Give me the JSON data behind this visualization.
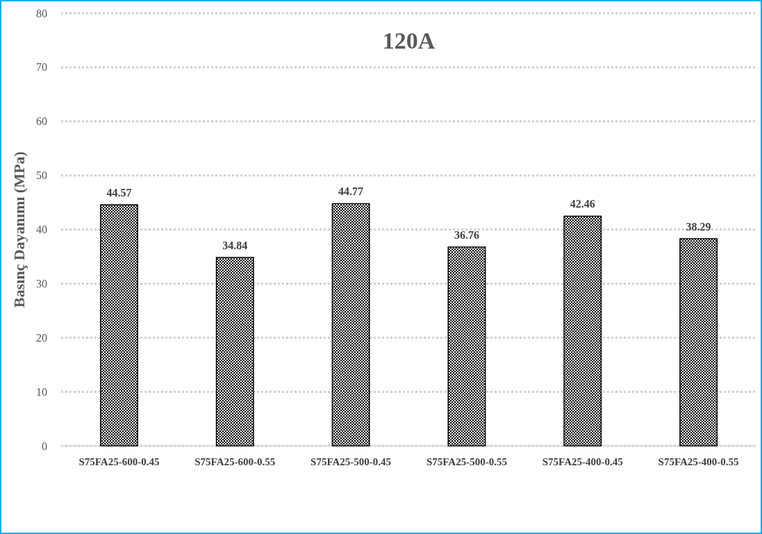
{
  "chart_data": {
    "type": "bar",
    "title": "120A",
    "ylabel": "Basınç Dayanımı (MPa)",
    "categories": [
      "S75FA25-600-0.45",
      "S75FA25-600-0.55",
      "S75FA25-500-0.45",
      "S75FA25-500-0.55",
      "S75FA25-400-0.45",
      "S75FA25-400-0.55"
    ],
    "values": [
      44.57,
      34.84,
      44.77,
      36.76,
      42.46,
      38.29
    ],
    "color": "#000000",
    "ylim": [
      0,
      80
    ],
    "yticks": [
      0,
      10,
      20,
      30,
      40,
      50,
      60,
      70,
      80
    ],
    "grid": "y",
    "data_labels": true
  }
}
